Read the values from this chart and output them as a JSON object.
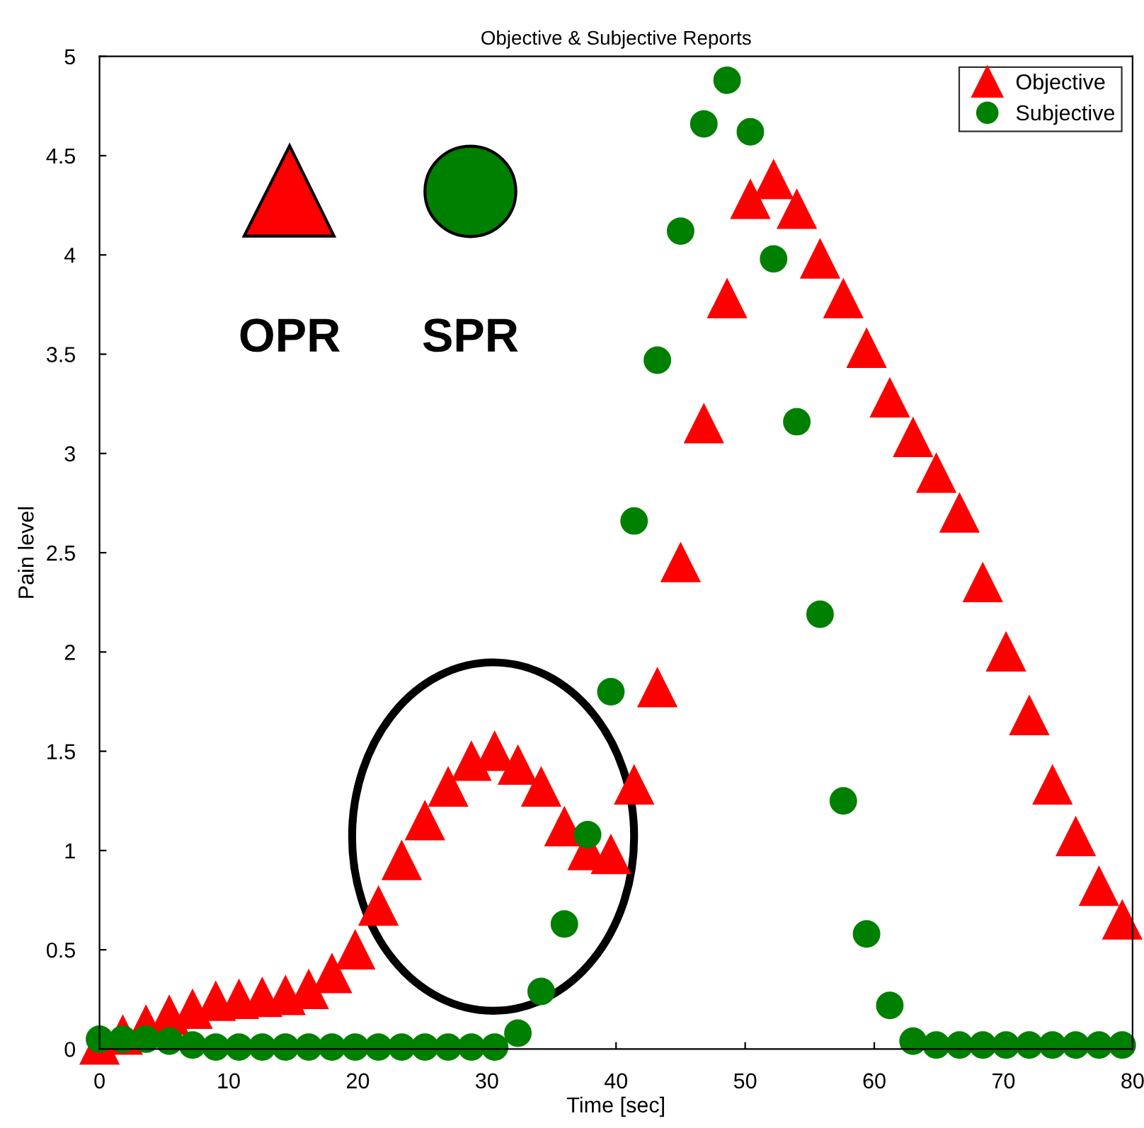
{
  "chart_data": {
    "type": "scatter",
    "title": "Objective & Subjective Reports",
    "xlabel": "Time [sec]",
    "ylabel": "Pain level",
    "x": [
      0,
      1.8,
      3.6,
      5.4,
      7.2,
      9,
      10.8,
      12.6,
      14.4,
      16.2,
      18,
      19.8,
      21.6,
      23.4,
      25.2,
      27,
      28.8,
      30.6,
      32.4,
      34.2,
      36,
      37.8,
      39.6,
      41.4,
      43.2,
      45,
      46.8,
      48.6,
      50.4,
      52.2,
      54,
      55.8,
      57.6,
      59.4,
      61.2,
      63,
      64.8,
      66.6,
      68.4,
      70.2,
      72,
      73.8,
      75.6,
      77.4,
      79.2
    ],
    "series": [
      {
        "name": "Objective",
        "color": "#ff0000",
        "marker": "triangle",
        "values": [
          0.02,
          0.07,
          0.12,
          0.17,
          0.2,
          0.24,
          0.25,
          0.26,
          0.27,
          0.3,
          0.38,
          0.5,
          0.72,
          0.95,
          1.15,
          1.32,
          1.45,
          1.5,
          1.43,
          1.32,
          1.12,
          1.0,
          0.98,
          1.33,
          1.82,
          2.45,
          3.15,
          3.78,
          4.28,
          4.38,
          4.23,
          3.98,
          3.78,
          3.53,
          3.28,
          3.08,
          2.9,
          2.7,
          2.35,
          2.0,
          1.68,
          1.33,
          1.07,
          0.82,
          0.65
        ]
      },
      {
        "name": "Subjective",
        "color": "#008000",
        "marker": "circle",
        "values": [
          0.05,
          0.05,
          0.05,
          0.04,
          0.02,
          0.01,
          0.01,
          0.01,
          0.01,
          0.01,
          0.01,
          0.01,
          0.01,
          0.01,
          0.01,
          0.01,
          0.01,
          0.01,
          0.08,
          0.29,
          0.63,
          1.08,
          1.8,
          2.66,
          3.47,
          4.12,
          4.66,
          4.88,
          4.62,
          3.98,
          3.16,
          2.19,
          1.25,
          0.58,
          0.22,
          0.04,
          0.02,
          0.02,
          0.02,
          0.02,
          0.02,
          0.02,
          0.02,
          0.02,
          0.02
        ]
      }
    ],
    "xlim": [
      0,
      80
    ],
    "xticks": [
      0,
      10,
      20,
      30,
      40,
      50,
      60,
      70,
      80
    ],
    "ylim": [
      0,
      5
    ],
    "yticks": [
      0,
      0.5,
      1,
      1.5,
      2,
      2.5,
      3,
      3.5,
      4,
      4.5,
      5
    ],
    "annotations": [
      "OPR",
      "SPR"
    ],
    "legend": "top right",
    "grid": false
  }
}
